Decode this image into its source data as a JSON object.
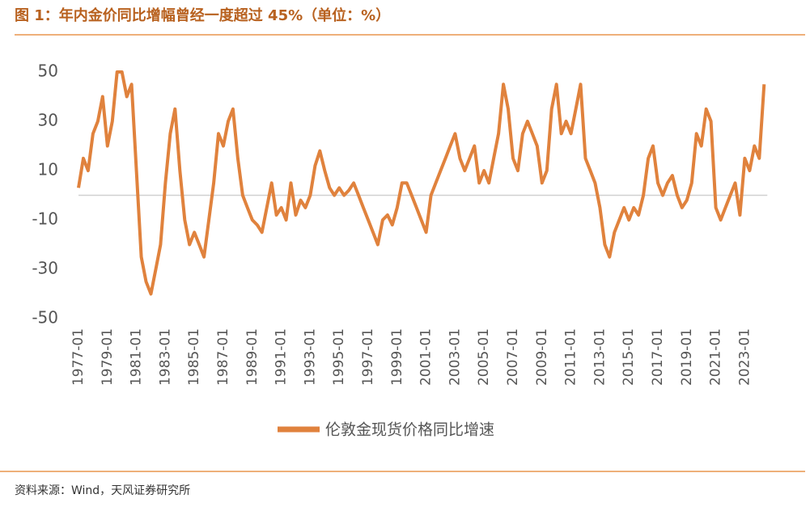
{
  "chart_data": {
    "type": "line",
    "title": "图 1：年内金价同比增幅曾经一度超过 45%（单位：%）",
    "source": "资料来源：Wind，天风证券研究所",
    "x": [
      "1977-01",
      "1977-05",
      "1977-09",
      "1978-01",
      "1978-05",
      "1978-09",
      "1979-01",
      "1979-05",
      "1979-09",
      "1980-01",
      "1980-05",
      "1980-09",
      "1981-01",
      "1981-05",
      "1981-09",
      "1982-01",
      "1982-05",
      "1982-09",
      "1983-01",
      "1983-05",
      "1983-09",
      "1984-01",
      "1984-05",
      "1984-09",
      "1985-01",
      "1985-05",
      "1985-09",
      "1986-01",
      "1986-05",
      "1986-09",
      "1987-01",
      "1987-05",
      "1987-09",
      "1988-01",
      "1988-05",
      "1988-09",
      "1989-01",
      "1989-05",
      "1989-09",
      "1990-01",
      "1990-05",
      "1990-09",
      "1991-01",
      "1991-05",
      "1991-09",
      "1992-01",
      "1992-05",
      "1992-09",
      "1993-01",
      "1993-05",
      "1993-09",
      "1994-01",
      "1994-05",
      "1994-09",
      "1995-01",
      "1995-05",
      "1995-09",
      "1996-01",
      "1996-05",
      "1996-09",
      "1997-01",
      "1997-05",
      "1997-09",
      "1998-01",
      "1998-05",
      "1998-09",
      "1999-01",
      "1999-05",
      "1999-09",
      "2000-01",
      "2000-05",
      "2000-09",
      "2001-01",
      "2001-05",
      "2001-09",
      "2002-01",
      "2002-05",
      "2002-09",
      "2003-01",
      "2003-05",
      "2003-09",
      "2004-01",
      "2004-05",
      "2004-09",
      "2005-01",
      "2005-05",
      "2005-09",
      "2006-01",
      "2006-05",
      "2006-09",
      "2007-01",
      "2007-05",
      "2007-09",
      "2008-01",
      "2008-05",
      "2008-09",
      "2009-01",
      "2009-05",
      "2009-09",
      "2010-01",
      "2010-05",
      "2010-09",
      "2011-01",
      "2011-05",
      "2011-09",
      "2012-01",
      "2012-05",
      "2012-09",
      "2013-01",
      "2013-05",
      "2013-09",
      "2014-01",
      "2014-05",
      "2014-09",
      "2015-01",
      "2015-05",
      "2015-09",
      "2016-01",
      "2016-05",
      "2016-09",
      "2017-01",
      "2017-05",
      "2017-09",
      "2018-01",
      "2018-05",
      "2018-09",
      "2019-01",
      "2019-05",
      "2019-09",
      "2020-01",
      "2020-05",
      "2020-09",
      "2021-01",
      "2021-05",
      "2021-09",
      "2022-01",
      "2022-05",
      "2022-09",
      "2023-01",
      "2023-05",
      "2023-09",
      "2024-01",
      "2024-05"
    ],
    "series": [
      {
        "name": "伦敦金现货价格同比增速",
        "color": "#e0823d",
        "values": [
          3,
          15,
          10,
          25,
          30,
          40,
          20,
          30,
          50,
          50,
          40,
          45,
          10,
          -25,
          -35,
          -40,
          -30,
          -20,
          5,
          25,
          35,
          10,
          -10,
          -20,
          -15,
          -20,
          -25,
          -10,
          5,
          25,
          20,
          30,
          35,
          15,
          0,
          -5,
          -10,
          -12,
          -15,
          -5,
          5,
          -8,
          -5,
          -10,
          5,
          -8,
          -2,
          -5,
          0,
          12,
          18,
          10,
          3,
          0,
          3,
          0,
          2,
          5,
          0,
          -5,
          -10,
          -15,
          -20,
          -10,
          -8,
          -12,
          -5,
          5,
          5,
          0,
          -5,
          -10,
          -15,
          0,
          5,
          10,
          15,
          20,
          25,
          15,
          10,
          15,
          20,
          5,
          10,
          5,
          15,
          25,
          45,
          35,
          15,
          10,
          25,
          30,
          25,
          20,
          5,
          10,
          35,
          45,
          25,
          30,
          25,
          35,
          45,
          15,
          10,
          5,
          -5,
          -20,
          -25,
          -15,
          -10,
          -5,
          -10,
          -5,
          -8,
          0,
          15,
          20,
          5,
          0,
          5,
          8,
          0,
          -5,
          -2,
          5,
          25,
          20,
          35,
          30,
          -5,
          -10,
          -5,
          0,
          5,
          -8,
          15,
          10,
          20,
          15,
          45
        ]
      }
    ],
    "ylim": [
      -50,
      50
    ],
    "yticks": [
      50,
      30,
      10,
      -10,
      -30,
      -50
    ],
    "xlim": [
      "1977-01",
      "2024-05"
    ],
    "xticks": [
      "1977-01",
      "1979-01",
      "1981-01",
      "1983-01",
      "1985-01",
      "1987-01",
      "1989-01",
      "1991-01",
      "1993-01",
      "1995-01",
      "1997-01",
      "1999-01",
      "2001-01",
      "2003-01",
      "2005-01",
      "2007-01",
      "2009-01",
      "2011-01",
      "2013-01",
      "2015-01",
      "2017-01",
      "2019-01",
      "2021-01",
      "2023-01"
    ]
  }
}
